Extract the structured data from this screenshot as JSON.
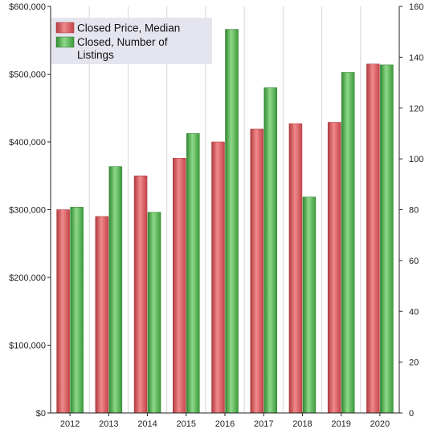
{
  "chart_data": {
    "type": "bar",
    "categories": [
      "2012",
      "2013",
      "2014",
      "2015",
      "2016",
      "2017",
      "2018",
      "2019",
      "2020"
    ],
    "series": [
      {
        "name": "Closed Price, Median",
        "axis": "left",
        "color": "#d9484c",
        "values": [
          300000,
          290000,
          350000,
          376000,
          400000,
          419000,
          427000,
          429000,
          515000
        ]
      },
      {
        "name": "Closed, Number of Listings",
        "name_lines": [
          "Closed, Number of",
          "Listings"
        ],
        "axis": "right",
        "color": "#4fae4a",
        "values": [
          81,
          97,
          79,
          110,
          151,
          128,
          85,
          134,
          137
        ]
      }
    ],
    "y_left": {
      "ylim": [
        0,
        600000
      ],
      "ticks": [
        0,
        100000,
        200000,
        300000,
        400000,
        500000,
        600000
      ],
      "tick_labels": [
        "$0",
        "$100,000",
        "$200,000",
        "$300,000",
        "$400,000",
        "$500,000",
        "$600,000"
      ]
    },
    "y_right": {
      "ylim": [
        0,
        160
      ],
      "ticks": [
        0,
        20,
        40,
        60,
        80,
        100,
        120,
        140,
        160
      ],
      "tick_labels": [
        "0",
        "20",
        "40",
        "60",
        "80",
        "100",
        "120",
        "140",
        "160"
      ]
    },
    "grid": "vertical",
    "legend_position": "top-left",
    "title": "",
    "xlabel": "",
    "ylabel": ""
  }
}
